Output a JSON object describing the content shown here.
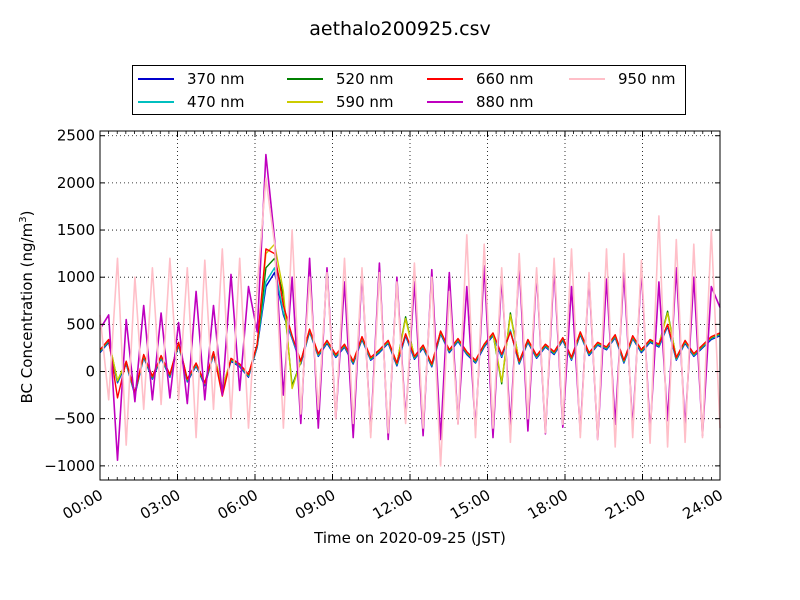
{
  "chart_data": {
    "type": "line",
    "title": "aethalo200925.csv",
    "xlabel": "Time on 2020-09-25 (JST)",
    "ylabel_base": "BC Concentration (ng/m",
    "ylabel_sup": "3",
    "ylabel_end": ")",
    "xlim_hours": [
      0,
      24
    ],
    "ylim": [
      -1150,
      2550
    ],
    "x_ticks": [
      {
        "hour": 0,
        "label": "00:00"
      },
      {
        "hour": 3,
        "label": "03:00"
      },
      {
        "hour": 6,
        "label": "06:00"
      },
      {
        "hour": 9,
        "label": "09:00"
      },
      {
        "hour": 12,
        "label": "12:00"
      },
      {
        "hour": 15,
        "label": "15:00"
      },
      {
        "hour": 18,
        "label": "18:00"
      },
      {
        "hour": 21,
        "label": "21:00"
      },
      {
        "hour": 24,
        "label": "24:00"
      }
    ],
    "y_ticks": [
      {
        "value": 2500,
        "label": "2500"
      },
      {
        "value": 2000,
        "label": "2000"
      },
      {
        "value": 1500,
        "label": "1500"
      },
      {
        "value": 1000,
        "label": "1000"
      },
      {
        "value": 500,
        "label": "500"
      },
      {
        "value": 0,
        "label": "0"
      },
      {
        "value": -500,
        "label": "−500"
      },
      {
        "value": -1000,
        "label": "−1000"
      }
    ],
    "grid": true,
    "legend_position": "top",
    "series": [
      {
        "name": "370 nm",
        "color": "#0000cc",
        "values": [
          200,
          310,
          -120,
          80,
          -250,
          150,
          -80,
          140,
          -60,
          280,
          -110,
          60,
          -150,
          180,
          -200,
          110,
          50,
          -60,
          260,
          900,
          1050,
          600,
          350,
          80,
          420,
          160,
          300,
          150,
          260,
          80,
          340,
          120,
          200,
          300,
          60,
          380,
          130,
          250,
          50,
          400,
          200,
          320,
          180,
          90,
          260,
          380,
          150,
          430,
          80,
          310,
          140,
          260,
          180,
          330,
          120,
          390,
          170,
          280,
          230,
          360,
          90,
          350,
          200,
          310,
          260,
          480,
          120,
          300,
          160,
          250,
          340,
          380
        ]
      },
      {
        "name": "470 nm",
        "color": "#00bfbf",
        "values": [
          210,
          320,
          -110,
          90,
          -240,
          160,
          -70,
          150,
          -50,
          290,
          -100,
          70,
          -140,
          190,
          -190,
          120,
          60,
          -50,
          270,
          950,
          1100,
          620,
          360,
          90,
          430,
          170,
          310,
          160,
          270,
          90,
          350,
          130,
          210,
          310,
          70,
          390,
          140,
          260,
          60,
          410,
          210,
          330,
          190,
          100,
          270,
          390,
          160,
          440,
          90,
          320,
          150,
          270,
          190,
          340,
          130,
          400,
          180,
          290,
          240,
          370,
          100,
          360,
          210,
          320,
          270,
          490,
          130,
          310,
          170,
          260,
          350,
          390
        ]
      },
      {
        "name": "520 nm",
        "color": "#008000",
        "values": [
          220,
          330,
          -100,
          100,
          -230,
          170,
          -60,
          160,
          -40,
          300,
          -90,
          80,
          -130,
          200,
          -180,
          130,
          70,
          -40,
          280,
          1100,
          1200,
          800,
          -150,
          100,
          440,
          180,
          320,
          170,
          280,
          100,
          360,
          140,
          220,
          320,
          80,
          580,
          150,
          270,
          70,
          420,
          220,
          340,
          200,
          110,
          280,
          400,
          -130,
          620,
          100,
          330,
          160,
          280,
          200,
          350,
          140,
          410,
          190,
          300,
          250,
          380,
          110,
          370,
          220,
          330,
          280,
          640,
          140,
          320,
          180,
          270,
          360,
          400
        ]
      },
      {
        "name": "590 nm",
        "color": "#cccc00",
        "values": [
          225,
          335,
          -95,
          105,
          -225,
          175,
          -55,
          165,
          -35,
          305,
          -85,
          85,
          -125,
          205,
          -175,
          135,
          75,
          -35,
          285,
          1250,
          1350,
          850,
          -180,
          105,
          445,
          185,
          325,
          175,
          285,
          105,
          365,
          145,
          225,
          325,
          85,
          560,
          155,
          275,
          75,
          425,
          225,
          345,
          205,
          115,
          285,
          405,
          -110,
          600,
          105,
          335,
          165,
          285,
          205,
          355,
          145,
          415,
          195,
          305,
          255,
          385,
          115,
          375,
          225,
          335,
          285,
          620,
          145,
          325,
          185,
          275,
          365,
          405
        ]
      },
      {
        "name": "660 nm",
        "color": "#ff0000",
        "values": [
          230,
          340,
          -280,
          110,
          -220,
          180,
          -50,
          170,
          -30,
          310,
          -80,
          90,
          -120,
          210,
          -260,
          140,
          80,
          -30,
          290,
          1300,
          1250,
          700,
          380,
          110,
          450,
          190,
          330,
          180,
          290,
          110,
          370,
          150,
          230,
          330,
          90,
          400,
          160,
          280,
          80,
          430,
          230,
          350,
          210,
          120,
          290,
          410,
          180,
          420,
          110,
          340,
          170,
          290,
          210,
          360,
          150,
          420,
          200,
          310,
          260,
          390,
          120,
          380,
          230,
          340,
          290,
          500,
          150,
          330,
          190,
          280,
          370,
          410
        ]
      },
      {
        "name": "880 nm",
        "color": "#bf00bf",
        "values": [
          450,
          600,
          -940,
          550,
          -320,
          700,
          -300,
          620,
          -280,
          520,
          -340,
          850,
          -300,
          700,
          -250,
          1030,
          -200,
          900,
          420,
          2300,
          1400,
          -250,
          1000,
          -550,
          1200,
          -600,
          1100,
          -500,
          950,
          -700,
          1050,
          -650,
          1150,
          -720,
          1000,
          -500,
          950,
          -680,
          1080,
          -720,
          1050,
          -550,
          900,
          -620,
          1120,
          -700,
          1000,
          -580,
          1150,
          -630,
          1050,
          -660,
          1100,
          -590,
          900,
          -640,
          1000,
          -720,
          980,
          -560,
          1050,
          -600,
          1080,
          -640,
          950,
          -520,
          1100,
          -600,
          1000,
          -680,
          900,
          680
        ]
      },
      {
        "name": "950 nm",
        "color": "#ffbfc8",
        "values": [
          600,
          -300,
          1200,
          -780,
          1000,
          -400,
          1100,
          -350,
          1200,
          -300,
          1100,
          -700,
          1180,
          -400,
          1300,
          -500,
          1200,
          -600,
          900,
          2050,
          1350,
          -600,
          1500,
          -450,
          1000,
          -400,
          1050,
          -500,
          1200,
          -550,
          1100,
          -700,
          1050,
          -650,
          950,
          -550,
          1150,
          -600,
          1000,
          -1000,
          850,
          -560,
          1450,
          -700,
          1350,
          -600,
          1100,
          -750,
          1250,
          -500,
          1100,
          -650,
          1200,
          -560,
          1300,
          -700,
          1050,
          -720,
          1300,
          -800,
          1250,
          -700,
          1180,
          -760,
          1650,
          -800,
          1400,
          -750,
          1350,
          -700,
          1500,
          -600
        ]
      }
    ]
  }
}
